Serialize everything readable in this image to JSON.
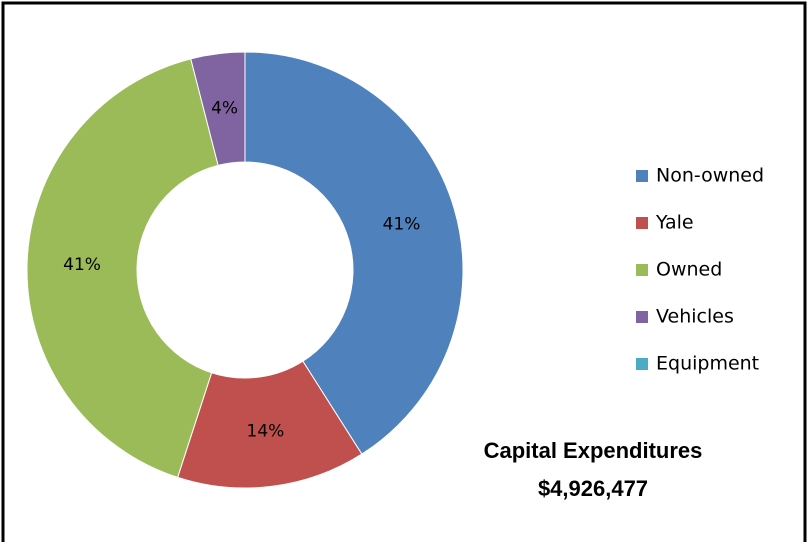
{
  "chart_data": {
    "type": "donut",
    "title": "Capital Expenditures",
    "subtitle": "$4,926,477",
    "categories": [
      "Non-owned",
      "Yale",
      "Owned",
      "Vehicles",
      "Equipment"
    ],
    "values": [
      41,
      14,
      41,
      4,
      0
    ],
    "value_labels": [
      "41%",
      "14%",
      "41%",
      "4%",
      null
    ],
    "colors": [
      "#4f81bd",
      "#c0504d",
      "#9bbb59",
      "#8064a2",
      "#4bacc6"
    ],
    "legend": "right"
  }
}
